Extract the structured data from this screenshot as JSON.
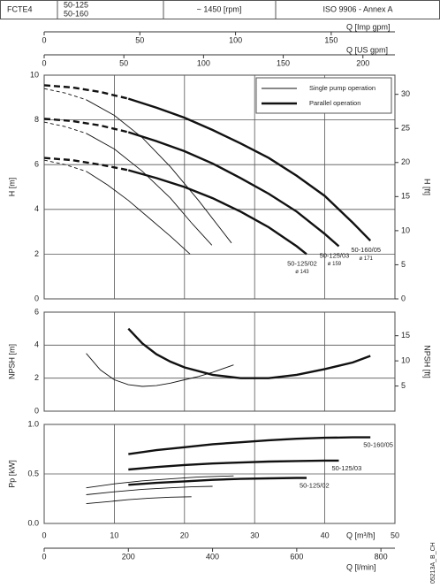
{
  "header": {
    "model": "FCTE4",
    "sizes": [
      "50-125",
      "50-160"
    ],
    "speed": "~ 1450 [rpm]",
    "standard": "ISO 9906 - Annex A"
  },
  "code": "05213A_B_CH",
  "chart_data": [
    {
      "type": "line",
      "ylabel": "H [m]",
      "ylim": [
        0,
        10
      ],
      "yticks": [
        0,
        2,
        4,
        6,
        8,
        10
      ],
      "y2label": "H [ft]",
      "y2lim": [
        0,
        32.81
      ],
      "y2ticks": [
        0,
        5,
        10,
        15,
        20,
        25,
        30
      ],
      "xlim": [
        0,
        50
      ],
      "x2_axes": [
        {
          "label": "Q [Imp gpm]",
          "xlim": [
            0,
            183.3
          ],
          "xticks": [
            0,
            50,
            100,
            150
          ]
        },
        {
          "label": "Q [US gpm]",
          "xlim": [
            0,
            220.1
          ],
          "xticks": [
            0,
            50,
            100,
            150,
            200
          ]
        }
      ],
      "legend": [
        {
          "name": "Single pump operation",
          "style": "thin"
        },
        {
          "name": "Parallel operation",
          "style": "thick"
        }
      ],
      "series": [
        {
          "style": "thick",
          "dashed": true,
          "x": [
            0,
            4,
            8,
            12
          ],
          "values": [
            9.55,
            9.45,
            9.25,
            8.95
          ]
        },
        {
          "style": "thick",
          "dashed": false,
          "label": "50-160/05",
          "sublabel": "ø 171",
          "x": [
            12,
            16,
            20,
            24,
            28,
            32,
            36,
            40,
            44,
            46.5
          ],
          "values": [
            8.95,
            8.55,
            8.1,
            7.55,
            6.95,
            6.3,
            5.5,
            4.6,
            3.4,
            2.6
          ]
        },
        {
          "style": "thick",
          "dashed": true,
          "x": [
            0,
            4,
            8,
            12
          ],
          "values": [
            8.05,
            7.95,
            7.75,
            7.45
          ]
        },
        {
          "style": "thick",
          "dashed": false,
          "label": "50-125/03",
          "sublabel": "ø 159",
          "x": [
            12,
            16,
            20,
            24,
            28,
            32,
            36,
            40,
            42
          ],
          "values": [
            7.45,
            7.05,
            6.6,
            6.05,
            5.4,
            4.7,
            3.9,
            2.9,
            2.35
          ]
        },
        {
          "style": "thick",
          "dashed": true,
          "x": [
            0,
            4,
            8,
            12
          ],
          "values": [
            6.3,
            6.2,
            6.0,
            5.75
          ]
        },
        {
          "style": "thick",
          "dashed": false,
          "label": "50-125/02",
          "sublabel": "ø 143",
          "x": [
            12,
            16,
            20,
            24,
            28,
            32,
            36,
            37.4
          ],
          "values": [
            5.75,
            5.4,
            5.0,
            4.5,
            3.9,
            3.2,
            2.35,
            2.0
          ]
        },
        {
          "style": "thin",
          "dashed": true,
          "x": [
            0,
            3,
            6
          ],
          "values": [
            9.4,
            9.2,
            8.9
          ]
        },
        {
          "style": "thin",
          "dashed": false,
          "x": [
            6,
            10,
            14,
            18,
            22,
            26.7
          ],
          "values": [
            8.9,
            8.2,
            7.2,
            5.9,
            4.4,
            2.5
          ]
        },
        {
          "style": "thin",
          "dashed": true,
          "x": [
            0,
            3,
            6
          ],
          "values": [
            7.9,
            7.7,
            7.4
          ]
        },
        {
          "style": "thin",
          "dashed": false,
          "x": [
            6,
            10,
            14,
            18,
            21,
            23.9
          ],
          "values": [
            7.4,
            6.7,
            5.7,
            4.5,
            3.4,
            2.4
          ]
        },
        {
          "style": "thin",
          "dashed": true,
          "x": [
            0,
            3,
            6
          ],
          "values": [
            6.2,
            6.0,
            5.7
          ]
        },
        {
          "style": "thin",
          "dashed": false,
          "x": [
            6,
            9,
            12,
            15,
            18,
            20.8
          ],
          "values": [
            5.7,
            5.1,
            4.4,
            3.6,
            2.8,
            2.0
          ]
        }
      ]
    },
    {
      "type": "line",
      "ylabel": "NPSH [m]",
      "ylim": [
        0,
        6
      ],
      "yticks": [
        0,
        2,
        4,
        6
      ],
      "y2label": "NPSH [ft]",
      "y2lim": [
        0,
        19.69
      ],
      "y2ticks": [
        5,
        10,
        15
      ],
      "xlim": [
        0,
        50
      ],
      "series": [
        {
          "style": "thin",
          "dashed": false,
          "x": [
            6,
            8,
            10,
            12,
            14,
            16,
            18,
            20,
            22,
            24,
            27
          ],
          "values": [
            3.5,
            2.5,
            1.9,
            1.6,
            1.5,
            1.55,
            1.7,
            1.9,
            2.1,
            2.35,
            2.8
          ]
        },
        {
          "style": "thick",
          "dashed": false,
          "x": [
            12,
            14,
            16,
            18,
            20,
            24,
            28,
            32,
            36,
            40,
            44,
            46.5
          ],
          "values": [
            5.0,
            4.1,
            3.45,
            3.0,
            2.65,
            2.2,
            2.0,
            2.0,
            2.2,
            2.55,
            2.95,
            3.35
          ]
        }
      ]
    },
    {
      "type": "line",
      "ylabel": "Pp [kW]",
      "ylim": [
        0,
        1
      ],
      "yticks": [
        {
          "value": 0,
          "label": "0.0"
        },
        {
          "value": 0.5,
          "label": "0.5"
        },
        {
          "value": 1,
          "label": "1.0"
        }
      ],
      "xlim": [
        0,
        50
      ],
      "xticks": [
        0,
        10,
        20,
        30,
        40,
        50
      ],
      "xlabel": "Q [m³/h]",
      "x2_axes": [
        {
          "label": "Q [l/min]",
          "xlim": [
            0,
            833.3
          ],
          "xticks": [
            0,
            200,
            400,
            600,
            800
          ]
        }
      ],
      "series": [
        {
          "style": "thick",
          "dashed": false,
          "label": "50-160/05",
          "x": [
            12,
            16,
            20,
            24,
            28,
            32,
            36,
            40,
            44,
            46.5
          ],
          "values": [
            0.7,
            0.74,
            0.77,
            0.8,
            0.82,
            0.84,
            0.855,
            0.865,
            0.87,
            0.87
          ]
        },
        {
          "style": "thick",
          "dashed": false,
          "label": "50-125/03",
          "x": [
            12,
            16,
            20,
            24,
            28,
            32,
            36,
            40,
            42
          ],
          "values": [
            0.545,
            0.57,
            0.59,
            0.605,
            0.615,
            0.625,
            0.63,
            0.635,
            0.635
          ]
        },
        {
          "style": "thick",
          "dashed": false,
          "label": "50-125/02",
          "x": [
            12,
            16,
            20,
            24,
            28,
            32,
            36,
            37.4
          ],
          "values": [
            0.39,
            0.41,
            0.425,
            0.44,
            0.45,
            0.455,
            0.46,
            0.46
          ]
        },
        {
          "style": "thin",
          "dashed": false,
          "x": [
            6,
            10,
            14,
            18,
            22,
            27
          ],
          "values": [
            0.36,
            0.4,
            0.43,
            0.45,
            0.47,
            0.48
          ]
        },
        {
          "style": "thin",
          "dashed": false,
          "x": [
            6,
            10,
            14,
            18,
            21,
            24
          ],
          "values": [
            0.29,
            0.32,
            0.345,
            0.36,
            0.37,
            0.375
          ]
        },
        {
          "style": "thin",
          "dashed": false,
          "x": [
            6,
            9,
            12,
            15,
            18,
            21
          ],
          "values": [
            0.2,
            0.22,
            0.24,
            0.255,
            0.265,
            0.27
          ]
        }
      ]
    }
  ]
}
